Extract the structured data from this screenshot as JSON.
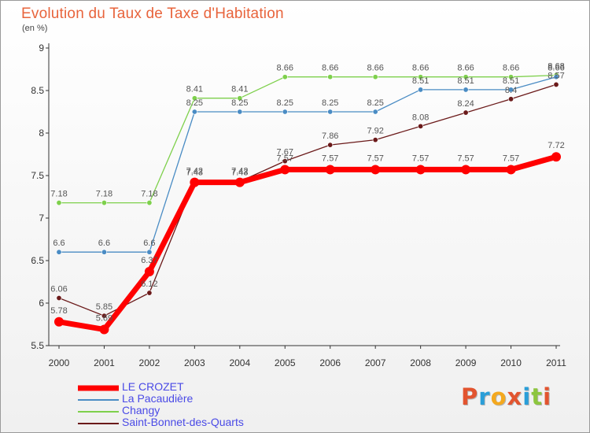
{
  "title": "Evolution du Taux de Taxe d'Habitation",
  "subtitle": "(en %)",
  "brand": {
    "text": "Proxiti",
    "colors": [
      "#e2542f",
      "#2a9ed8",
      "#f4a81e",
      "#e2542f",
      "#2a9ed8",
      "#8dc63f",
      "#e2542f"
    ]
  },
  "chart_data": {
    "type": "line",
    "x": [
      2000,
      2001,
      2002,
      2003,
      2004,
      2005,
      2006,
      2007,
      2008,
      2009,
      2010,
      2011
    ],
    "y_ticks": [
      5.5,
      6,
      6.5,
      7,
      7.5,
      8,
      8.5,
      9
    ],
    "ylim": [
      5.5,
      9
    ],
    "grid": false,
    "legend_position": "bottom-left",
    "series": [
      {
        "name": "LE CROZET",
        "color": "#ff0000",
        "values": [
          5.78,
          5.69,
          6.37,
          7.42,
          7.42,
          7.57,
          7.57,
          7.57,
          7.57,
          7.57,
          7.57,
          7.72
        ],
        "labels": [
          "5.78",
          "5.69",
          "6.37",
          "7.42",
          "7.42",
          "7.57",
          "7.57",
          "7.57",
          "7.57",
          "7.57",
          "7.57",
          "7.72"
        ]
      },
      {
        "name": "La Pacaudière",
        "color": "#4a8cc4",
        "values": [
          6.6,
          6.6,
          6.6,
          8.25,
          8.25,
          8.25,
          8.25,
          8.25,
          8.51,
          8.51,
          8.51,
          8.66
        ],
        "labels": [
          "6.6",
          "6.6",
          "6.6",
          "8.25",
          "8.25",
          "8.25",
          "8.25",
          "8.25",
          "8.51",
          "8.51",
          "8.51",
          "8.66"
        ]
      },
      {
        "name": "Changy",
        "color": "#7ed04c",
        "values": [
          7.18,
          7.18,
          7.18,
          8.41,
          8.41,
          8.66,
          8.66,
          8.66,
          8.66,
          8.66,
          8.66,
          8.68
        ],
        "labels": [
          "7.18",
          "7.18",
          "7.18",
          "8.41",
          "8.41",
          "8.66",
          "8.66",
          "8.66",
          "8.66",
          "8.66",
          "8.66",
          "8.68"
        ]
      },
      {
        "name": "Saint-Bonnet-des-Quarts",
        "color": "#6b1a1a",
        "values": [
          6.06,
          5.85,
          6.12,
          7.43,
          7.43,
          7.67,
          7.86,
          7.92,
          8.08,
          8.24,
          8.4,
          8.57
        ],
        "labels": [
          "6.06",
          "5.85",
          "6.12",
          "7.43",
          "7.43",
          "7.67",
          "7.86",
          "7.92",
          "8.08",
          "8.24",
          "8.4",
          "8.57"
        ]
      }
    ]
  }
}
